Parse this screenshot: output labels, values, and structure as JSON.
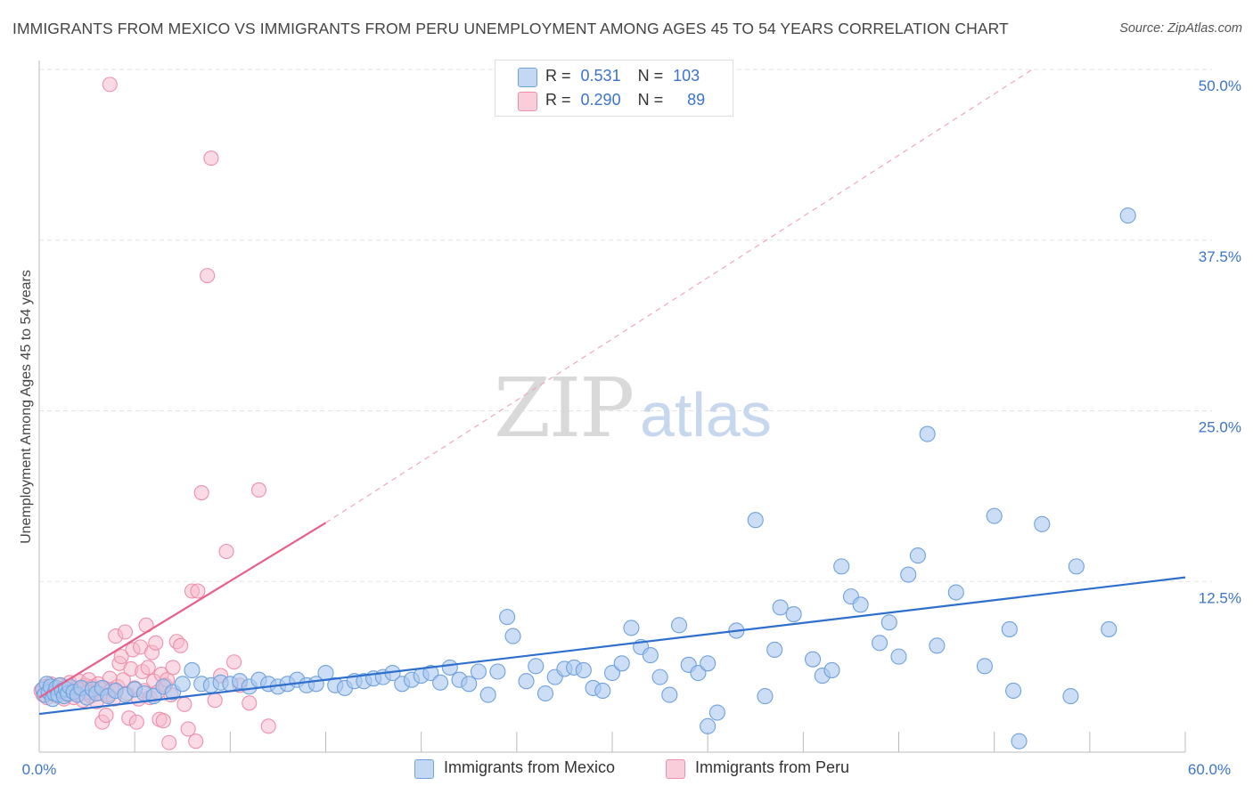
{
  "title": "IMMIGRANTS FROM MEXICO VS IMMIGRANTS FROM PERU UNEMPLOYMENT AMONG AGES 45 TO 54 YEARS CORRELATION CHART",
  "source": "Source: ZipAtlas.com",
  "watermark": {
    "zip": "ZIP",
    "atlas": "atlas"
  },
  "legend_top": {
    "rows": [
      {
        "r_label": "R =",
        "r_value": "0.531",
        "n_label": "N =",
        "n_value": "103"
      },
      {
        "r_label": "R =",
        "r_value": "0.290",
        "n_label": "N =",
        "n_value": "89"
      }
    ]
  },
  "legend_bottom": {
    "mexico": "Immigrants from Mexico",
    "peru": "Immigrants from Peru"
  },
  "colors": {
    "mexico_fill": "#aac8ee",
    "mexico_stroke": "#6fa1dd",
    "mexico_line": "#2e6fce",
    "peru_fill": "#f6b8cb",
    "peru_stroke": "#ee8fab",
    "peru_line": "#e8608a",
    "grid": "#e3e3e3",
    "tick_label": "#3b74c8"
  },
  "chart_data": {
    "type": "scatter",
    "title": "IMMIGRANTS FROM MEXICO VS IMMIGRANTS FROM PERU UNEMPLOYMENT AMONG AGES 45 TO 54 YEARS CORRELATION CHART",
    "xlabel": "",
    "ylabel": "Unemployment Among Ages 45 to 54 years",
    "xlim": [
      0,
      60
    ],
    "ylim": [
      0,
      50
    ],
    "x_tick_labels": [
      "0.0%",
      "60.0%"
    ],
    "y_tick_labels": [
      "12.5%",
      "25.0%",
      "37.5%",
      "50.0%"
    ],
    "y_ticks": [
      12.5,
      25,
      37.5,
      50
    ],
    "series": [
      {
        "name": "Immigrants from Mexico",
        "r": 0.531,
        "n": 103,
        "trend": {
          "x": [
            0,
            60
          ],
          "y": [
            2.8,
            12.8
          ],
          "style": "solid"
        },
        "points": [
          [
            0.2,
            4.6
          ],
          [
            0.3,
            4.2
          ],
          [
            0.4,
            5.0
          ],
          [
            0.5,
            4.4
          ],
          [
            0.6,
            4.8
          ],
          [
            0.7,
            3.9
          ],
          [
            0.8,
            4.3
          ],
          [
            0.9,
            4.7
          ],
          [
            1.0,
            4.2
          ],
          [
            1.1,
            4.9
          ],
          [
            1.2,
            4.5
          ],
          [
            1.3,
            4.1
          ],
          [
            1.4,
            4.6
          ],
          [
            1.5,
            4.3
          ],
          [
            1.6,
            4.8
          ],
          [
            1.8,
            4.4
          ],
          [
            2.0,
            4.2
          ],
          [
            2.2,
            4.7
          ],
          [
            2.5,
            4.0
          ],
          [
            2.8,
            4.6
          ],
          [
            3.0,
            4.3
          ],
          [
            3.3,
            4.7
          ],
          [
            3.6,
            4.1
          ],
          [
            4.0,
            4.5
          ],
          [
            4.5,
            4.2
          ],
          [
            5.0,
            4.6
          ],
          [
            5.5,
            4.3
          ],
          [
            6.0,
            4.1
          ],
          [
            6.5,
            4.8
          ],
          [
            7.0,
            4.4
          ],
          [
            7.5,
            5.0
          ],
          [
            8.0,
            6.0
          ],
          [
            8.5,
            5.0
          ],
          [
            9.0,
            4.9
          ],
          [
            9.5,
            5.1
          ],
          [
            10.0,
            5.0
          ],
          [
            10.5,
            5.2
          ],
          [
            11.0,
            4.8
          ],
          [
            11.5,
            5.3
          ],
          [
            12.0,
            5.0
          ],
          [
            12.5,
            4.8
          ],
          [
            13.0,
            5.0
          ],
          [
            13.5,
            5.3
          ],
          [
            14.0,
            4.9
          ],
          [
            14.5,
            5.0
          ],
          [
            15.0,
            5.8
          ],
          [
            15.5,
            4.9
          ],
          [
            16.0,
            4.7
          ],
          [
            16.5,
            5.2
          ],
          [
            17.0,
            5.2
          ],
          [
            17.5,
            5.4
          ],
          [
            18.0,
            5.5
          ],
          [
            18.5,
            5.8
          ],
          [
            19.0,
            5.0
          ],
          [
            19.5,
            5.3
          ],
          [
            20.0,
            5.6
          ],
          [
            20.5,
            5.8
          ],
          [
            21.0,
            5.1
          ],
          [
            21.5,
            6.2
          ],
          [
            22.0,
            5.3
          ],
          [
            22.5,
            5.0
          ],
          [
            23.0,
            5.9
          ],
          [
            23.5,
            4.2
          ],
          [
            24.0,
            5.9
          ],
          [
            24.5,
            9.9
          ],
          [
            24.8,
            8.5
          ],
          [
            25.5,
            5.2
          ],
          [
            26.0,
            6.3
          ],
          [
            26.5,
            4.3
          ],
          [
            27.0,
            5.5
          ],
          [
            27.5,
            6.1
          ],
          [
            28.0,
            6.2
          ],
          [
            28.5,
            6.0
          ],
          [
            29.0,
            4.7
          ],
          [
            29.5,
            4.5
          ],
          [
            30.0,
            5.8
          ],
          [
            30.5,
            6.5
          ],
          [
            31.0,
            9.1
          ],
          [
            31.5,
            7.7
          ],
          [
            32.0,
            7.1
          ],
          [
            32.5,
            5.5
          ],
          [
            33.0,
            4.2
          ],
          [
            33.5,
            9.3
          ],
          [
            34.0,
            6.4
          ],
          [
            34.5,
            5.8
          ],
          [
            35.0,
            6.5
          ],
          [
            35.0,
            1.9
          ],
          [
            35.5,
            2.9
          ],
          [
            36.5,
            8.9
          ],
          [
            37.5,
            17.0
          ],
          [
            38.0,
            4.1
          ],
          [
            38.5,
            7.5
          ],
          [
            38.8,
            10.6
          ],
          [
            39.5,
            10.1
          ],
          [
            40.5,
            6.8
          ],
          [
            41.0,
            5.6
          ],
          [
            41.5,
            6.0
          ],
          [
            42.0,
            13.6
          ],
          [
            42.5,
            11.4
          ],
          [
            43.0,
            10.8
          ],
          [
            44.0,
            8.0
          ],
          [
            44.5,
            9.5
          ],
          [
            45.0,
            7.0
          ],
          [
            45.5,
            13.0
          ],
          [
            46.0,
            14.4
          ],
          [
            46.5,
            23.3
          ],
          [
            47.0,
            7.8
          ],
          [
            48.0,
            11.7
          ],
          [
            49.5,
            6.3
          ],
          [
            50.0,
            17.3
          ],
          [
            50.8,
            9.0
          ],
          [
            51.0,
            4.5
          ],
          [
            51.3,
            0.8
          ],
          [
            52.5,
            16.7
          ],
          [
            54.0,
            4.1
          ],
          [
            54.3,
            13.6
          ],
          [
            56.0,
            9.0
          ],
          [
            57.0,
            39.3
          ]
        ]
      },
      {
        "name": "Immigrants from Peru",
        "r": 0.29,
        "n": 89,
        "trend": {
          "x": [
            0,
            15.0
          ],
          "y": [
            4.0,
            16.8
          ],
          "style": "solid",
          "extended_x": [
            15.0,
            52.0
          ],
          "extended_y": [
            16.8,
            50.0
          ],
          "extended_style": "dashed"
        },
        "points": [
          [
            0.1,
            4.5
          ],
          [
            0.2,
            4.2
          ],
          [
            0.3,
            4.8
          ],
          [
            0.4,
            4.0
          ],
          [
            0.5,
            4.6
          ],
          [
            0.6,
            5.0
          ],
          [
            0.7,
            4.3
          ],
          [
            0.8,
            4.7
          ],
          [
            0.9,
            4.1
          ],
          [
            1.0,
            4.9
          ],
          [
            1.1,
            4.4
          ],
          [
            1.2,
            4.6
          ],
          [
            1.3,
            3.9
          ],
          [
            1.4,
            4.8
          ],
          [
            1.5,
            4.2
          ],
          [
            1.6,
            5.1
          ],
          [
            1.7,
            4.5
          ],
          [
            1.8,
            4.0
          ],
          [
            1.9,
            4.7
          ],
          [
            2.0,
            4.3
          ],
          [
            2.1,
            5.2
          ],
          [
            2.2,
            4.6
          ],
          [
            2.3,
            3.8
          ],
          [
            2.4,
            4.9
          ],
          [
            2.5,
            4.4
          ],
          [
            2.6,
            5.3
          ],
          [
            2.7,
            4.1
          ],
          [
            2.8,
            4.8
          ],
          [
            2.9,
            4.5
          ],
          [
            3.0,
            3.7
          ],
          [
            3.1,
            5.0
          ],
          [
            3.2,
            4.3
          ],
          [
            3.3,
            2.2
          ],
          [
            3.4,
            4.7
          ],
          [
            3.5,
            2.7
          ],
          [
            3.6,
            4.2
          ],
          [
            3.7,
            5.4
          ],
          [
            3.8,
            4.6
          ],
          [
            3.9,
            3.9
          ],
          [
            4.0,
            8.5
          ],
          [
            4.1,
            4.8
          ],
          [
            4.2,
            6.5
          ],
          [
            4.3,
            7.0
          ],
          [
            4.4,
            5.3
          ],
          [
            4.5,
            8.8
          ],
          [
            4.6,
            4.3
          ],
          [
            4.7,
            2.5
          ],
          [
            4.8,
            6.1
          ],
          [
            4.9,
            7.5
          ],
          [
            5.0,
            4.7
          ],
          [
            5.1,
            2.2
          ],
          [
            5.2,
            3.9
          ],
          [
            5.3,
            7.7
          ],
          [
            5.4,
            5.9
          ],
          [
            5.5,
            4.5
          ],
          [
            5.6,
            9.3
          ],
          [
            5.7,
            6.2
          ],
          [
            5.8,
            4.0
          ],
          [
            5.9,
            7.3
          ],
          [
            6.0,
            5.2
          ],
          [
            6.1,
            8.0
          ],
          [
            6.2,
            4.4
          ],
          [
            6.3,
            2.4
          ],
          [
            6.4,
            5.7
          ],
          [
            6.5,
            2.3
          ],
          [
            6.6,
            4.9
          ],
          [
            6.7,
            5.3
          ],
          [
            6.8,
            0.7
          ],
          [
            6.9,
            4.2
          ],
          [
            7.0,
            6.2
          ],
          [
            7.2,
            8.1
          ],
          [
            7.4,
            7.8
          ],
          [
            7.6,
            3.5
          ],
          [
            7.8,
            1.7
          ],
          [
            8.0,
            11.8
          ],
          [
            8.2,
            0.8
          ],
          [
            8.5,
            19.0
          ],
          [
            8.8,
            34.9
          ],
          [
            9.0,
            43.5
          ],
          [
            9.2,
            3.8
          ],
          [
            9.5,
            5.6
          ],
          [
            9.8,
            14.7
          ],
          [
            10.2,
            6.6
          ],
          [
            10.5,
            4.9
          ],
          [
            11.0,
            3.6
          ],
          [
            11.5,
            19.2
          ],
          [
            12.0,
            1.9
          ],
          [
            3.7,
            48.9
          ],
          [
            8.3,
            11.8
          ]
        ]
      }
    ]
  }
}
